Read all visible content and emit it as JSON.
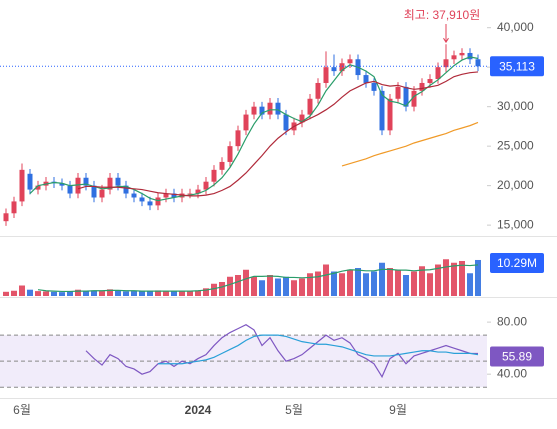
{
  "chart_data": [
    {
      "type": "candlestick",
      "categories": [
        null,
        null,
        "6월",
        null,
        null,
        null,
        null,
        null,
        null,
        null,
        null,
        null,
        null,
        null,
        null,
        null,
        null,
        null,
        null,
        null,
        null,
        null,
        null,
        null,
        "2024",
        null,
        null,
        null,
        null,
        null,
        null,
        null,
        null,
        null,
        null,
        null,
        "5월",
        null,
        null,
        null,
        null,
        null,
        null,
        null,
        null,
        null,
        null,
        null,
        null,
        "9월",
        null,
        null,
        null,
        null,
        null,
        null,
        null,
        null,
        null,
        null
      ],
      "open": [
        15500,
        16500,
        18000,
        21500,
        19500,
        20000,
        20500,
        20300,
        20000,
        19000,
        21000,
        20000,
        18500,
        19500,
        21000,
        20000,
        19000,
        18500,
        18000,
        17500,
        18500,
        19000,
        18500,
        19000,
        19000,
        19500,
        20500,
        22000,
        23000,
        25000,
        27000,
        29000,
        30000,
        29000,
        30500,
        29000,
        27000,
        28000,
        29000,
        31000,
        33000,
        35000,
        34500,
        35500,
        36000,
        34000,
        33000,
        32000,
        27000,
        31000,
        32500,
        30000,
        32000,
        33000,
        33500,
        35000,
        36000,
        36500,
        36800,
        36000
      ],
      "high": [
        17100,
        18600,
        22800,
        22100,
        20600,
        21100,
        21100,
        20900,
        20600,
        21600,
        21600,
        20600,
        20100,
        21600,
        21600,
        20600,
        19600,
        19100,
        18600,
        19100,
        19600,
        19600,
        19600,
        19600,
        20100,
        21100,
        22600,
        23600,
        25600,
        27600,
        29600,
        30600,
        30600,
        31100,
        31100,
        29600,
        28600,
        29600,
        31600,
        33600,
        37000,
        36600,
        36100,
        36600,
        36600,
        34600,
        33600,
        32600,
        31600,
        33100,
        33100,
        32600,
        33600,
        34100,
        35600,
        37910,
        37100,
        37400,
        37400,
        36600
      ],
      "low": [
        14900,
        15900,
        17400,
        18900,
        18900,
        19400,
        19700,
        19400,
        18400,
        18400,
        19400,
        17900,
        17900,
        18900,
        19400,
        18400,
        17900,
        17400,
        16900,
        16900,
        17900,
        17900,
        17900,
        18400,
        18400,
        18900,
        19900,
        21400,
        22400,
        24400,
        26400,
        28400,
        28400,
        28400,
        28400,
        26400,
        26400,
        27400,
        28400,
        30400,
        32400,
        33900,
        33900,
        34900,
        33400,
        32400,
        31400,
        26400,
        26400,
        30400,
        29400,
        29400,
        31400,
        32400,
        32900,
        34400,
        35400,
        35900,
        35400,
        34500
      ],
      "close": [
        16500,
        18000,
        22000,
        19500,
        20000,
        20500,
        20300,
        20000,
        19000,
        21000,
        20000,
        18500,
        19500,
        21000,
        20000,
        19000,
        18500,
        18000,
        17500,
        18500,
        19000,
        18500,
        19000,
        19000,
        19500,
        20500,
        22000,
        23000,
        25000,
        27000,
        29000,
        30000,
        29000,
        30500,
        29000,
        27000,
        28000,
        29000,
        31000,
        33000,
        35000,
        34500,
        35500,
        36000,
        34000,
        33000,
        32000,
        27000,
        31000,
        32500,
        30000,
        32000,
        33000,
        33500,
        35000,
        36000,
        36500,
        36800,
        36000,
        35113
      ],
      "up_color": "#e0435a",
      "down_color": "#2f6fe0",
      "series": [
        {
          "color": "#2a9d6a",
          "values": [
            null,
            null,
            null,
            19000,
            20000,
            20200,
            20400,
            20300,
            20000,
            20100,
            20200,
            19900,
            19600,
            19700,
            19900,
            19900,
            19500,
            19000,
            18400,
            18100,
            18300,
            18500,
            18700,
            18800,
            19000,
            19400,
            20100,
            21000,
            22300,
            24000,
            26000,
            27800,
            29200,
            29600,
            29600,
            29000,
            28500,
            28100,
            28800,
            30200,
            32000,
            33300,
            34600,
            35300,
            35000,
            34500,
            33800,
            31500,
            30700,
            30500,
            30100,
            31300,
            31900,
            32700,
            33400,
            34300,
            35200,
            35900,
            36300,
            36100
          ]
        },
        {
          "color": "#b02a3a",
          "values": [
            null,
            null,
            null,
            null,
            null,
            null,
            null,
            null,
            null,
            19600,
            19900,
            19900,
            19800,
            19800,
            19800,
            19700,
            19600,
            19500,
            19300,
            19100,
            19000,
            18900,
            18800,
            18700,
            18700,
            18800,
            19000,
            19400,
            19900,
            20700,
            21600,
            22700,
            23800,
            25000,
            26000,
            26800,
            27500,
            28000,
            28500,
            29000,
            29600,
            30300,
            31200,
            32000,
            32500,
            33000,
            33200,
            32800,
            32600,
            32700,
            32400,
            32200,
            32300,
            32500,
            32700,
            33200,
            33800,
            34100,
            34300,
            34400
          ]
        },
        {
          "color": "#f09a28",
          "values": [
            null,
            null,
            null,
            null,
            null,
            null,
            null,
            null,
            null,
            null,
            null,
            null,
            null,
            null,
            null,
            null,
            null,
            null,
            null,
            null,
            null,
            null,
            null,
            null,
            null,
            null,
            null,
            null,
            null,
            null,
            null,
            null,
            null,
            null,
            null,
            null,
            null,
            null,
            null,
            null,
            null,
            null,
            22500,
            22800,
            23100,
            23400,
            23800,
            24100,
            24400,
            24700,
            25000,
            25400,
            25700,
            26000,
            26300,
            26600,
            27000,
            27300,
            27600,
            28000
          ]
        }
      ],
      "high_label": "최고: 37,910원",
      "high_index": 55,
      "last_label": "35,113",
      "last_color": "#2962ff",
      "ylim": [
        13750,
        43000
      ],
      "yticks": [
        {
          "value": 15000,
          "label": "15,000"
        },
        {
          "value": 20000,
          "label": "20,000"
        },
        {
          "value": 25000,
          "label": "25,000"
        },
        {
          "value": 30000,
          "label": "30,000"
        },
        {
          "value": 35000,
          "label": "35,000"
        },
        {
          "value": 40000,
          "label": "40,000"
        }
      ]
    },
    {
      "type": "bar",
      "values": [
        1.2,
        1.5,
        3.0,
        1.8,
        1.4,
        1.3,
        1.2,
        1.1,
        1.3,
        1.8,
        1.5,
        1.6,
        1.4,
        1.9,
        1.5,
        1.3,
        1.4,
        1.3,
        1.5,
        1.6,
        1.4,
        1.3,
        1.5,
        1.4,
        1.6,
        2.2,
        3.5,
        4.0,
        5.5,
        6.0,
        7.5,
        5.5,
        4.5,
        6.0,
        5.0,
        5.5,
        4.5,
        5.0,
        6.5,
        7.0,
        9.0,
        7.0,
        6.5,
        7.5,
        8.0,
        6.5,
        7.0,
        9.5,
        8.0,
        7.5,
        6.0,
        7.0,
        8.5,
        6.5,
        9.0,
        10.5,
        9.5,
        10.0,
        6.5,
        10.29
      ],
      "ma": {
        "color": "#2a9d6a",
        "values": [
          null,
          null,
          null,
          null,
          1.8,
          1.5,
          1.4,
          1.3,
          1.3,
          1.4,
          1.4,
          1.5,
          1.5,
          1.6,
          1.6,
          1.5,
          1.5,
          1.4,
          1.4,
          1.4,
          1.4,
          1.4,
          1.4,
          1.4,
          1.5,
          1.7,
          2.1,
          2.6,
          3.3,
          4.1,
          4.9,
          5.6,
          5.6,
          5.7,
          5.6,
          5.3,
          5.3,
          5.2,
          5.3,
          5.5,
          6.0,
          6.5,
          7.1,
          7.5,
          7.4,
          7.2,
          7.2,
          7.6,
          7.6,
          7.4,
          7.4,
          7.2,
          7.4,
          7.5,
          7.9,
          8.3,
          8.6,
          8.8,
          8.7,
          8.9
        ]
      },
      "last_label": "10.29M",
      "last_color": "#2962ff",
      "ylim": [
        0,
        16
      ]
    },
    {
      "type": "line",
      "series": [
        {
          "color": "#7e57c2",
          "values": [
            null,
            null,
            null,
            null,
            null,
            null,
            null,
            null,
            null,
            null,
            58,
            52,
            47,
            55,
            52,
            46,
            44,
            40,
            42,
            48,
            50,
            46,
            50,
            48,
            52,
            55,
            62,
            68,
            72,
            75,
            78,
            74,
            62,
            68,
            58,
            50,
            52,
            55,
            60,
            65,
            70,
            66,
            68,
            64,
            55,
            52,
            48,
            38,
            52,
            56,
            48,
            54,
            56,
            58,
            60,
            62,
            60,
            58,
            56,
            55.89
          ]
        },
        {
          "color": "#29a0d8",
          "values": [
            null,
            null,
            null,
            null,
            null,
            null,
            null,
            null,
            null,
            null,
            null,
            null,
            null,
            null,
            null,
            null,
            null,
            null,
            null,
            48,
            48,
            48,
            48,
            49,
            50,
            51,
            53,
            56,
            59,
            62,
            66,
            69,
            70,
            70,
            70,
            69,
            67,
            65,
            64,
            63,
            63,
            62,
            61,
            59,
            57,
            55,
            54,
            54,
            54,
            55,
            56,
            57,
            58,
            58,
            57,
            57,
            56,
            56,
            56,
            55
          ]
        }
      ],
      "band": [
        30,
        70
      ],
      "hlines": [
        30,
        50,
        70
      ],
      "ylim": [
        24,
        97
      ],
      "yticks": [
        {
          "value": 40,
          "label": "40.00"
        },
        {
          "value": 80,
          "label": "80.00"
        }
      ]
    }
  ]
}
